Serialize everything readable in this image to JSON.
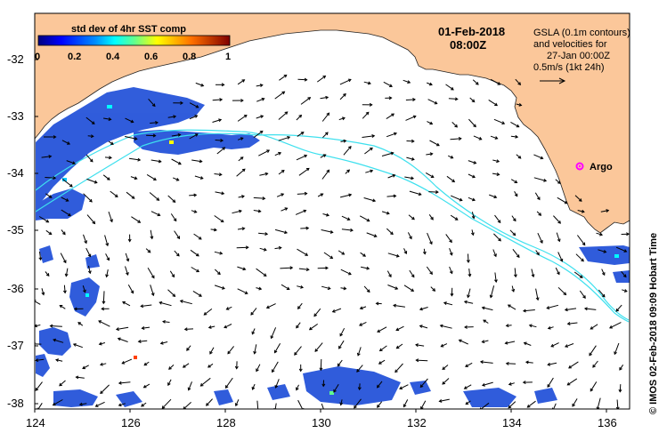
{
  "map": {
    "date": "01-Feb-2018",
    "time": "08:00Z",
    "legend_note": [
      "GSLA (0.1m contours)",
      "and velocities for",
      "27-Jan 00:00Z",
      "0.5m/s (1kt 24h)"
    ],
    "colorbar": {
      "title": "std dev of 4hr SST comp",
      "ticks": [
        "0",
        "0.2",
        "0.4",
        "0.6",
        "0.8",
        "1"
      ]
    },
    "lat_labels": [
      "-32",
      "-33",
      "-34",
      "-35",
      "-36",
      "-37",
      "-38"
    ],
    "lon_labels": [
      "124",
      "126",
      "128",
      "130",
      "132",
      "134",
      "136"
    ],
    "argo_label": "Argo",
    "credit": "© IMOS 02-Feb-2018 09:09 Hobart Time",
    "colors": {
      "land": "#fbc79a",
      "ocean": "#ffffff",
      "contour": "#3ee0ee",
      "argo": "#ff00ff"
    }
  }
}
